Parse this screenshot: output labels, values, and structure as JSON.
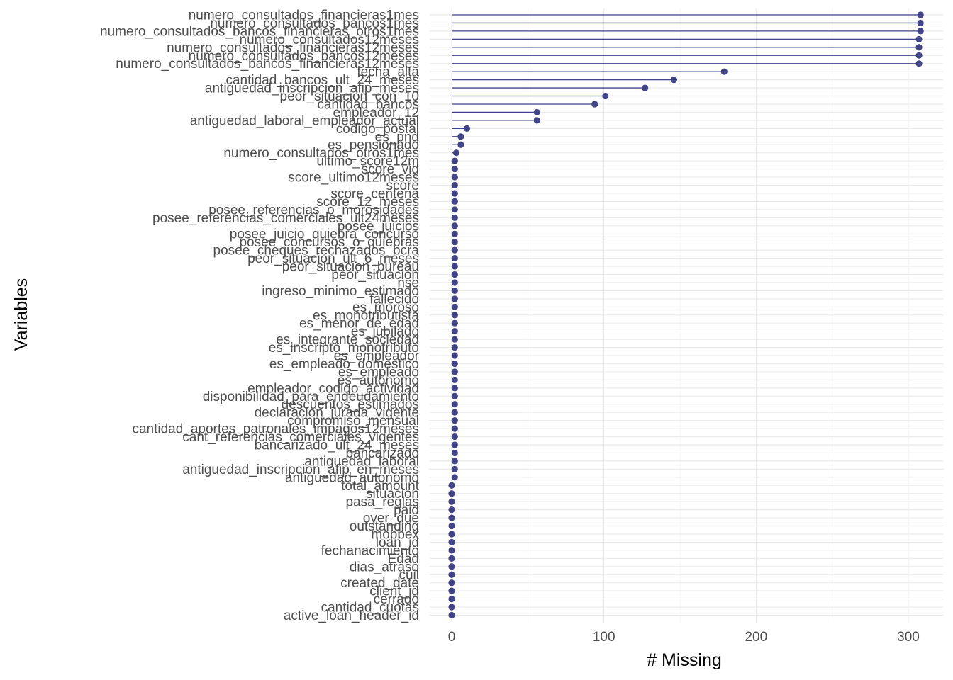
{
  "chart_data": {
    "type": "lollipop",
    "xlabel": "# Missing",
    "ylabel": "Variables",
    "xlim": [
      0,
      310
    ],
    "x_ticks": [
      0,
      100,
      200,
      300
    ],
    "grid": true,
    "colors": {
      "series": "#414487"
    },
    "series": [
      {
        "label": "numero_consultados_financieras1mes",
        "value": 308
      },
      {
        "label": "numero_consultados_bancos1mes",
        "value": 308
      },
      {
        "label": "numero_consultados_bancos_financieras_otros1mes",
        "value": 308
      },
      {
        "label": "numero_consultados12meses",
        "value": 307
      },
      {
        "label": "numero_consultados_financieras12meses",
        "value": 307
      },
      {
        "label": "numero_consultados_bancos12meses",
        "value": 307
      },
      {
        "label": "numero_consultados_bancos_financieras12meses",
        "value": 307
      },
      {
        "label": "fecha_alta",
        "value": 179
      },
      {
        "label": "cantidad_bancos_ult_24_meses",
        "value": 146
      },
      {
        "label": "antiguedad_inscripcion_afip_meses",
        "value": 127
      },
      {
        "label": "peor_situacion_con_10",
        "value": 101
      },
      {
        "label": "cantidad_bancos",
        "value": 94
      },
      {
        "label": "empleador_12",
        "value": 56
      },
      {
        "label": "antiguedad_laboral_empleador_actual",
        "value": 56
      },
      {
        "label": "codigo_postal",
        "value": 10
      },
      {
        "label": "es_pnd",
        "value": 6
      },
      {
        "label": "es_pensionado",
        "value": 6
      },
      {
        "label": "numero_consultados_otros1mes",
        "value": 3
      },
      {
        "label": "ultimo_score12m",
        "value": 2
      },
      {
        "label": "score_vid",
        "value": 2
      },
      {
        "label": "score_ultimo12meses",
        "value": 2
      },
      {
        "label": "score",
        "value": 2
      },
      {
        "label": "score_centena",
        "value": 2
      },
      {
        "label": "score_12_meses",
        "value": 2
      },
      {
        "label": "posee_referencias_o_morosidades",
        "value": 2
      },
      {
        "label": "posee_referencias_comerciales_ult24meses",
        "value": 2
      },
      {
        "label": "posee_juicios",
        "value": 2
      },
      {
        "label": "posee_juicio_quiebra_concurso",
        "value": 2
      },
      {
        "label": "posee_concursos_o_quiebras",
        "value": 2
      },
      {
        "label": "posee_cheques_rechazados_bcra",
        "value": 2
      },
      {
        "label": "peor_situacion_ult_6_meses",
        "value": 2
      },
      {
        "label": "peor_situacion_bureau",
        "value": 2
      },
      {
        "label": "peor_situacion",
        "value": 2
      },
      {
        "label": "nse",
        "value": 2
      },
      {
        "label": "ingreso_minimo_estimado",
        "value": 2
      },
      {
        "label": "fallecido",
        "value": 2
      },
      {
        "label": "es_moroso",
        "value": 2
      },
      {
        "label": "es_monotributista",
        "value": 2
      },
      {
        "label": "es_menor_de_edad",
        "value": 2
      },
      {
        "label": "es_jubilado",
        "value": 2
      },
      {
        "label": "es_integrante_sociedad",
        "value": 2
      },
      {
        "label": "es_inscripto_monotributo",
        "value": 2
      },
      {
        "label": "es_empleador",
        "value": 2
      },
      {
        "label": "es_empleado_domestico",
        "value": 2
      },
      {
        "label": "es_empleado",
        "value": 2
      },
      {
        "label": "es_autonomo",
        "value": 2
      },
      {
        "label": "empleador_codigo_actividad",
        "value": 2
      },
      {
        "label": "disponibilidad_para_endeudamiento",
        "value": 2
      },
      {
        "label": "descuentos_estimados",
        "value": 2
      },
      {
        "label": "declaracion_jurada_vigente",
        "value": 2
      },
      {
        "label": "compromiso_mensual",
        "value": 2
      },
      {
        "label": "cantidad_aportes_patronales_impagos12meses",
        "value": 2
      },
      {
        "label": "cant_referencias_comerciales_vigentes",
        "value": 2
      },
      {
        "label": "bancarizado_ult_24_meses",
        "value": 2
      },
      {
        "label": "bancarizado",
        "value": 2
      },
      {
        "label": "antiguedad_laboral",
        "value": 2
      },
      {
        "label": "antiguedad_inscripcion_afip_en_meses",
        "value": 2
      },
      {
        "label": "antiguedad_autonomo",
        "value": 2
      },
      {
        "label": "total_amount",
        "value": 0
      },
      {
        "label": "situacion",
        "value": 0
      },
      {
        "label": "pasa_reglas",
        "value": 0
      },
      {
        "label": "paid",
        "value": 0
      },
      {
        "label": "over_due",
        "value": 0
      },
      {
        "label": "outstanding",
        "value": 0
      },
      {
        "label": "mopbex",
        "value": 0
      },
      {
        "label": "loan_id",
        "value": 0
      },
      {
        "label": "fechanacimiento",
        "value": 0
      },
      {
        "label": "Edad",
        "value": 0
      },
      {
        "label": "dias_atraso",
        "value": 0
      },
      {
        "label": "cuil",
        "value": 0
      },
      {
        "label": "created_date",
        "value": 0
      },
      {
        "label": "client_id",
        "value": 0
      },
      {
        "label": "cerrado",
        "value": 0
      },
      {
        "label": "cantidad_cuotas",
        "value": 0
      },
      {
        "label": "active_loan_header_id",
        "value": 0
      }
    ]
  }
}
